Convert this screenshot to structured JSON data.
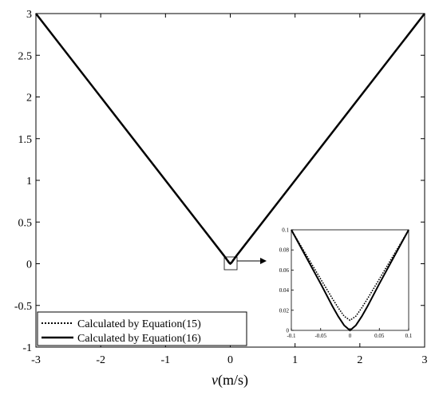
{
  "chart_data": {
    "type": "line",
    "xlabel_italic": "v",
    "xlabel_rest": "(m/s)",
    "ylabel": "",
    "xlim": [
      -3,
      3
    ],
    "ylim": [
      -1,
      3
    ],
    "xticks": [
      "-3",
      "-2",
      "-1",
      "0",
      "1",
      "2",
      "3"
    ],
    "yticks": [
      "-1",
      "-0.5",
      "0",
      "0.5",
      "1",
      "1.5",
      "2",
      "2.5",
      "3"
    ],
    "grid": false,
    "legend_position": "bottom-left",
    "series": [
      {
        "name": "Calculated by Equation(15)",
        "style": "dotted",
        "x": [
          -3,
          -0.1,
          -0.05,
          -0.03,
          -0.02,
          -0.01,
          0,
          0.01,
          0.02,
          0.03,
          0.05,
          0.1,
          3
        ],
        "y": [
          3,
          0.1,
          0.051,
          0.0316,
          0.0224,
          0.0141,
          0.01,
          0.0141,
          0.0224,
          0.0316,
          0.051,
          0.1,
          3
        ]
      },
      {
        "name": "Calculated by Equation(16)",
        "style": "solid",
        "x": [
          -3,
          -0.1,
          -0.05,
          -0.03,
          -0.02,
          -0.01,
          0,
          0.01,
          0.02,
          0.03,
          0.05,
          0.1,
          3
        ],
        "y": [
          3,
          0.1,
          0.0464,
          0.0241,
          0.0138,
          0.005,
          0,
          0.005,
          0.0138,
          0.0241,
          0.0464,
          0.1,
          3
        ]
      }
    ],
    "inset": {
      "xlim": [
        -0.1,
        0.1
      ],
      "ylim": [
        0,
        0.1
      ],
      "xticks": [
        "-0.1",
        "-0.05",
        "0",
        "0.05",
        "0.1"
      ],
      "yticks": [
        "0",
        "0.02",
        "0.04",
        "0.06",
        "0.08",
        "0.1"
      ]
    }
  }
}
